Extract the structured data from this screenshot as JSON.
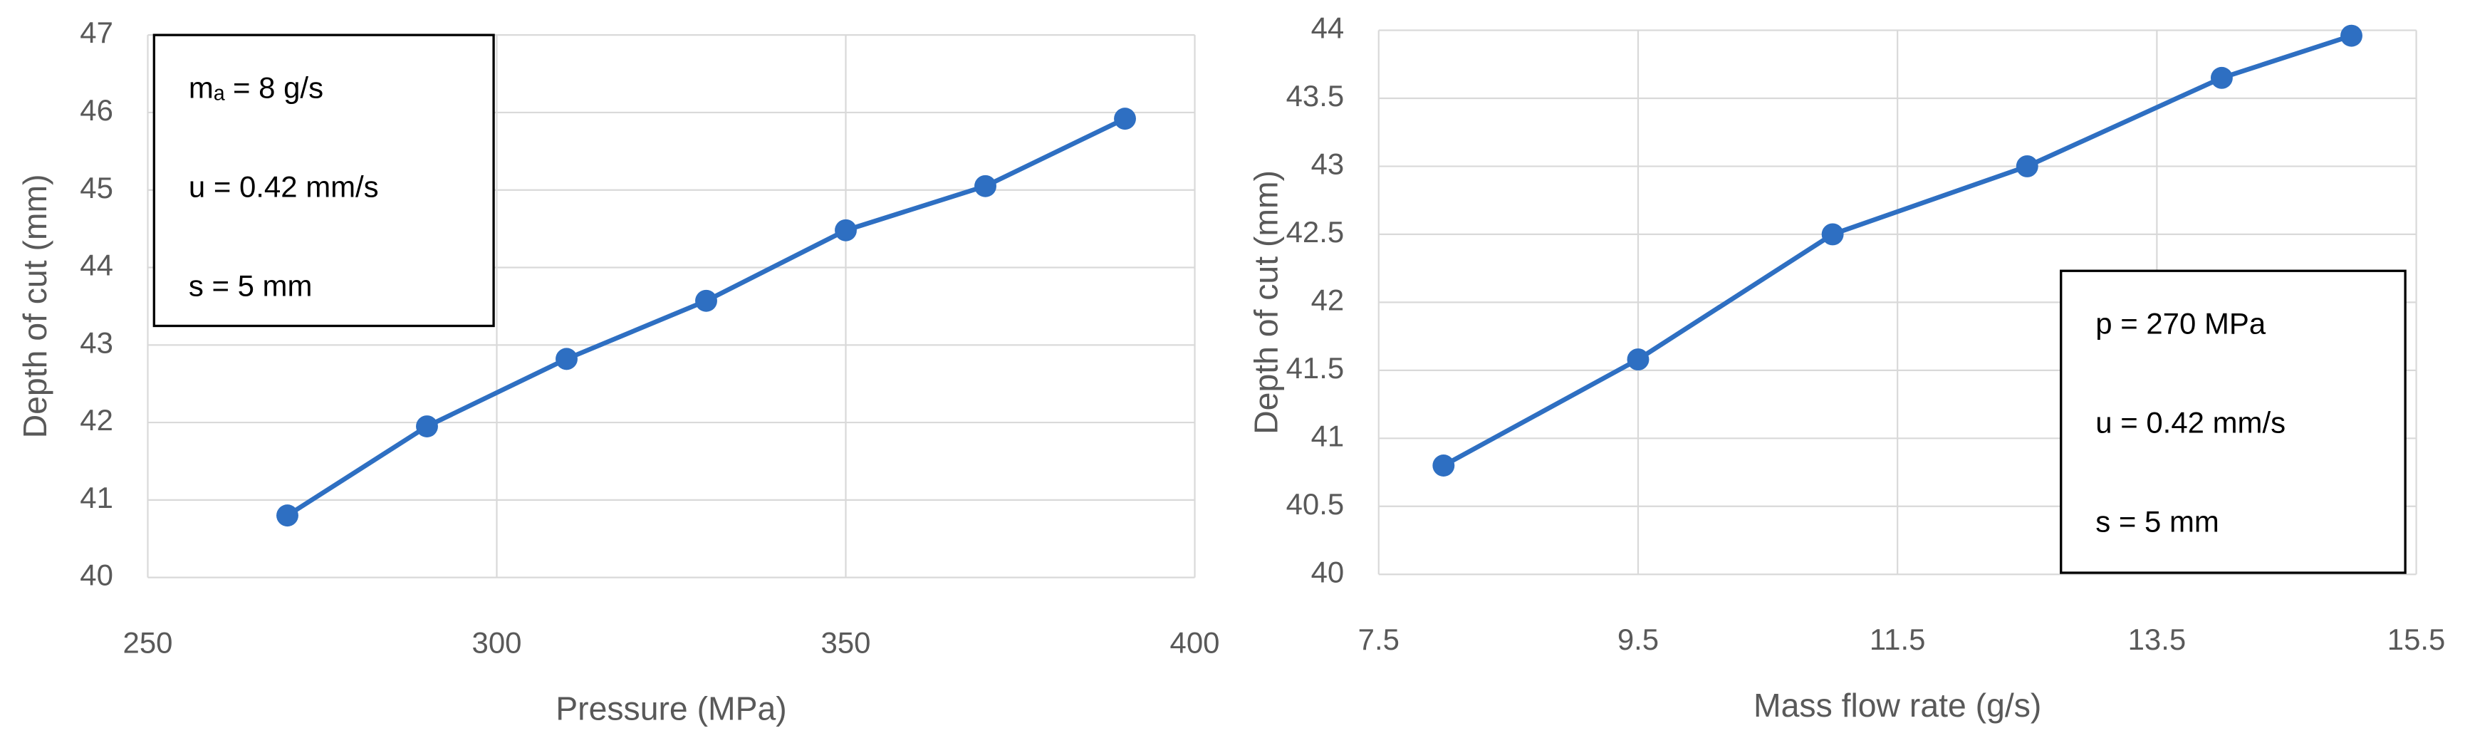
{
  "chart_data": [
    {
      "type": "line",
      "x_label": "Pressure (MPa)",
      "y_label": "Depth of cut (mm)",
      "annotations": [
        "mₐ = 8 g/s",
        "u = 0.42 mm/s",
        "s = 5 mm"
      ],
      "x": [
        270,
        290,
        310,
        330,
        350,
        370,
        390
      ],
      "series": [
        {
          "color": "#2e6fc2",
          "values": [
            40.8,
            41.95,
            42.82,
            43.57,
            44.48,
            45.05,
            45.92
          ]
        }
      ],
      "xlim": [
        250,
        400
      ],
      "xticks": [
        250,
        300,
        350,
        400
      ],
      "ylim": [
        40,
        47
      ],
      "yticks": [
        40,
        41,
        42,
        43,
        44,
        45,
        46,
        47
      ],
      "grid": true
    },
    {
      "type": "line",
      "x_label": "Mass flow rate (g/s)",
      "y_label": "Depth of cut (mm)",
      "annotations": [
        "p = 270 MPa",
        "u = 0.42 mm/s",
        "s = 5 mm"
      ],
      "x": [
        8,
        9.5,
        11,
        12.5,
        14,
        15
      ],
      "series": [
        {
          "color": "#2e6fc2",
          "values": [
            40.8,
            41.58,
            42.5,
            43.0,
            43.65,
            43.96
          ]
        }
      ],
      "xlim": [
        7.5,
        15.5
      ],
      "xticks": [
        7.5,
        9.5,
        11.5,
        13.5,
        15.5
      ],
      "ylim": [
        40,
        44
      ],
      "yticks": [
        40,
        40.5,
        41,
        41.5,
        42,
        42.5,
        43,
        43.5,
        44
      ],
      "grid": true
    }
  ]
}
